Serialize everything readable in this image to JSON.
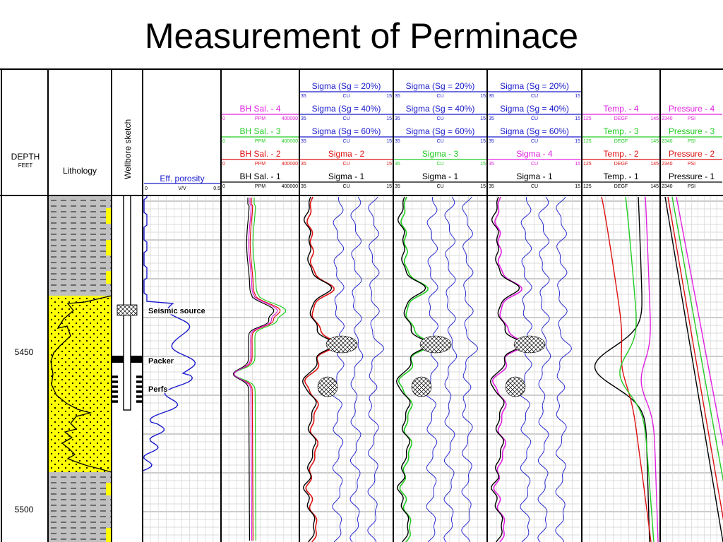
{
  "title": "Measurement of Perminace",
  "depth_track": {
    "label": "DEPTH",
    "unit": "FEET",
    "ticks": [
      "5450",
      "5500"
    ]
  },
  "lithology": {
    "label": "Lithology"
  },
  "wellbore": {
    "label": "Wellbore sketch",
    "annotations": [
      "Seismic source",
      "Packer",
      "Perfs"
    ]
  },
  "porosity": {
    "name": "Eff. porosity",
    "min": "0",
    "unit": "V/V",
    "max": "0.5"
  },
  "salinity": [
    {
      "name": "BH Sal. - 4",
      "min": "0",
      "unit": "PPM",
      "max": "400000",
      "color": "#e020e0"
    },
    {
      "name": "BH Sal. - 3",
      "min": "0",
      "unit": "PPM",
      "max": "400000",
      "color": "#22cc22"
    },
    {
      "name": "BH Sal. - 2",
      "min": "0",
      "unit": "PPM",
      "max": "400000",
      "color": "#dd1111"
    },
    {
      "name": "BH Sal. - 1",
      "min": "0",
      "unit": "PPM",
      "max": "400000",
      "color": "#000000"
    }
  ],
  "sigma_tracks": [
    {
      "headers": [
        {
          "name": "Sigma (Sg = 20%)",
          "min": "35",
          "unit": "CU",
          "max": "15",
          "color": "#1a1acc"
        },
        {
          "name": "Sigma (Sg = 40%)",
          "min": "35",
          "unit": "CU",
          "max": "15",
          "color": "#1a1acc"
        },
        {
          "name": "Sigma (Sg = 60%)",
          "min": "35",
          "unit": "CU",
          "max": "15",
          "color": "#1a1acc"
        },
        {
          "name": "Sigma - 2",
          "min": "35",
          "unit": "CU",
          "max": "15",
          "color": "#dd1111"
        },
        {
          "name": "Sigma - 1",
          "min": "35",
          "unit": "CU",
          "max": "15",
          "color": "#000000"
        }
      ]
    },
    {
      "headers": [
        {
          "name": "Sigma (Sg = 20%)",
          "min": "35",
          "unit": "CU",
          "max": "15",
          "color": "#1a1acc"
        },
        {
          "name": "Sigma (Sg = 40%)",
          "min": "35",
          "unit": "CU",
          "max": "15",
          "color": "#1a1acc"
        },
        {
          "name": "Sigma (Sg = 60%)",
          "min": "35",
          "unit": "CU",
          "max": "15",
          "color": "#1a1acc"
        },
        {
          "name": "Sigma - 3",
          "min": "35",
          "unit": "CU",
          "max": "15",
          "color": "#22cc22"
        },
        {
          "name": "Sigma - 1",
          "min": "35",
          "unit": "CU",
          "max": "15",
          "color": "#000000"
        }
      ]
    },
    {
      "headers": [
        {
          "name": "Sigma (Sg = 20%)",
          "min": "35",
          "unit": "CU",
          "max": "15",
          "color": "#1a1acc"
        },
        {
          "name": "Sigma (Sg = 40%)",
          "min": "35",
          "unit": "CU",
          "max": "15",
          "color": "#1a1acc"
        },
        {
          "name": "Sigma (Sg = 60%)",
          "min": "35",
          "unit": "CU",
          "max": "15",
          "color": "#1a1acc"
        },
        {
          "name": "Sigma - 4",
          "min": "35",
          "unit": "CU",
          "max": "15",
          "color": "#e020e0"
        },
        {
          "name": "Sigma - 1",
          "min": "35",
          "unit": "CU",
          "max": "15",
          "color": "#000000"
        }
      ]
    }
  ],
  "temperature": [
    {
      "name": "Temp. - 4",
      "min": "125",
      "unit": "DEGF",
      "max": "145",
      "color": "#e020e0"
    },
    {
      "name": "Temp. - 3",
      "min": "125",
      "unit": "DEGF",
      "max": "145",
      "color": "#22cc22"
    },
    {
      "name": "Temp. - 2",
      "min": "125",
      "unit": "DEGF",
      "max": "145",
      "color": "#dd1111"
    },
    {
      "name": "Temp. - 1",
      "min": "125",
      "unit": "DEGF",
      "max": "145",
      "color": "#000000"
    }
  ],
  "pressure": [
    {
      "name": "Pressure - 4",
      "min": "2340",
      "unit": "PSI",
      "color": "#e020e0"
    },
    {
      "name": "Pressure - 3",
      "min": "2340",
      "unit": "PSI",
      "color": "#22cc22"
    },
    {
      "name": "Pressure - 2",
      "min": "2340",
      "unit": "PSI",
      "color": "#dd1111"
    },
    {
      "name": "Pressure - 1",
      "min": "2340",
      "unit": "PSI",
      "color": "#000000"
    }
  ],
  "colors": {
    "sand": "#ffff00",
    "shale": "#c0c0c0",
    "grid": "#b8b8b8",
    "porosity_curve": "#1a1acc"
  }
}
